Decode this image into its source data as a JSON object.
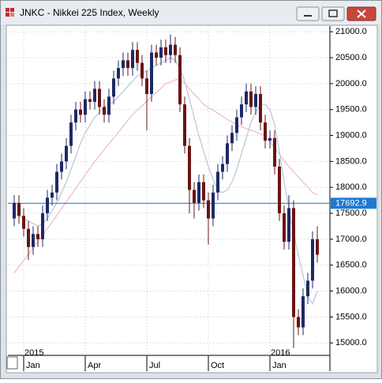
{
  "chart_data": {
    "type": "candlestick",
    "title": "JNKC - Nikkei 225 Index, Weekly",
    "categories": [
      null,
      null,
      "Jan",
      null,
      null,
      null,
      null,
      null,
      null,
      null,
      null,
      null,
      null,
      null,
      null,
      "Apr",
      null,
      null,
      null,
      null,
      null,
      null,
      null,
      null,
      null,
      null,
      null,
      null,
      "Jul",
      null,
      null,
      null,
      null,
      null,
      null,
      null,
      null,
      null,
      null,
      null,
      null,
      "Oct",
      null,
      null,
      null,
      null,
      null,
      null,
      null,
      null,
      null,
      null,
      null,
      null,
      "Jan",
      null,
      null,
      null,
      null,
      null,
      null,
      null,
      null,
      null,
      null
    ],
    "years": [
      "2015",
      "2016"
    ],
    "open": [
      17400,
      17700,
      17450,
      17200,
      16850,
      17100,
      17000,
      17500,
      17800,
      17900,
      18300,
      18500,
      18800,
      19250,
      19500,
      19400,
      19700,
      19650,
      19900,
      19550,
      19400,
      19750,
      20100,
      20300,
      20450,
      20300,
      20650,
      20400,
      20100,
      19800,
      20600,
      20500,
      20700,
      20550,
      20750,
      20550,
      19600,
      18800,
      17950,
      17700,
      18100,
      17750,
      17400,
      17900,
      18300,
      18450,
      18850,
      19050,
      19350,
      19600,
      19850,
      19550,
      19800,
      19250,
      18900,
      18950,
      18400,
      17500,
      16950,
      17600,
      15500,
      15300,
      15900,
      16200,
      17000
    ],
    "high": [
      17850,
      17850,
      17600,
      17350,
      17250,
      17250,
      17650,
      17950,
      18050,
      18450,
      18650,
      18950,
      19400,
      19650,
      19650,
      19850,
      19850,
      20050,
      20050,
      19700,
      19900,
      20250,
      20450,
      20600,
      20600,
      20800,
      20800,
      20550,
      20250,
      20750,
      20750,
      20850,
      20850,
      20950,
      20900,
      20700,
      19750,
      18950,
      18100,
      18250,
      18250,
      17900,
      18050,
      18450,
      18600,
      19000,
      19200,
      19500,
      19750,
      20000,
      20000,
      19950,
      19950,
      19400,
      19100,
      19100,
      18550,
      17650,
      17850,
      17750,
      15650,
      16050,
      16350,
      17150,
      17250
    ],
    "low": [
      17250,
      17300,
      17050,
      16600,
      16700,
      16850,
      16850,
      17350,
      17650,
      17750,
      18150,
      18350,
      18650,
      19100,
      19250,
      19250,
      19500,
      19500,
      19400,
      19250,
      19250,
      19600,
      19950,
      20150,
      20150,
      20150,
      20250,
      19950,
      19100,
      19650,
      20350,
      20350,
      20400,
      20400,
      20400,
      19450,
      18650,
      17500,
      17400,
      17550,
      17600,
      16900,
      17250,
      17750,
      18150,
      18300,
      18700,
      18900,
      19200,
      19450,
      19400,
      19400,
      19100,
      18750,
      18750,
      18250,
      17350,
      16800,
      16800,
      14900,
      15150,
      15150,
      15750,
      16050,
      16550
    ],
    "close": [
      17700,
      17450,
      17200,
      16850,
      17100,
      17000,
      17500,
      17800,
      17900,
      18300,
      18500,
      18800,
      19250,
      19500,
      19400,
      19700,
      19650,
      19900,
      19550,
      19400,
      19750,
      20100,
      20300,
      20450,
      20300,
      20650,
      20400,
      20100,
      19800,
      20600,
      20500,
      20700,
      20550,
      20750,
      20550,
      19600,
      18800,
      17950,
      17700,
      18100,
      17750,
      17400,
      17900,
      18300,
      18450,
      18850,
      19050,
      19350,
      19600,
      19850,
      19550,
      19800,
      19250,
      18900,
      18950,
      18400,
      17500,
      16950,
      17600,
      15500,
      15300,
      15900,
      16200,
      17000,
      16700
    ],
    "up_color": "#1c2a66",
    "down_color": "#6b1414",
    "overlays": [
      {
        "color": "#b8c6d8",
        "values": [
          17500,
          17450,
          17400,
          17350,
          17300,
          17250,
          17300,
          17400,
          17550,
          17700,
          17900,
          18100,
          18350,
          18600,
          18850,
          19050,
          19200,
          19350,
          19450,
          19550,
          19600,
          19650,
          19750,
          19850,
          19950,
          20050,
          20150,
          20200,
          20250,
          20300,
          20350,
          20400,
          20450,
          20500,
          20450,
          20300,
          20050,
          19700,
          19350,
          19000,
          18700,
          18400,
          18150,
          17950,
          17900,
          17950,
          18100,
          18350,
          18650,
          18950,
          19250,
          19450,
          19600,
          19600,
          19500,
          19200,
          18700,
          18100,
          17600,
          17100,
          16700,
          16300,
          15900,
          15750,
          16000
        ]
      },
      {
        "color": "#f0b8c8",
        "values": [
          16350,
          16470,
          16590,
          16710,
          16830,
          16950,
          17080,
          17200,
          17330,
          17460,
          17590,
          17720,
          17850,
          17980,
          18110,
          18240,
          18370,
          18500,
          18610,
          18730,
          18840,
          18950,
          19060,
          19180,
          19290,
          19400,
          19490,
          19570,
          19660,
          19740,
          19830,
          19910,
          20000,
          20030,
          20070,
          20100,
          20000,
          19900,
          19800,
          19700,
          19600,
          19540,
          19490,
          19430,
          19370,
          19310,
          19260,
          19200,
          19170,
          19130,
          19100,
          19070,
          19030,
          19000,
          18880,
          18760,
          18640,
          18520,
          18400,
          18300,
          18200,
          18100,
          18000,
          17900,
          17850
        ]
      }
    ],
    "price_line": 17692.9,
    "price_line_color": "#1e78d2",
    "ylim": [
      14760,
      21110
    ],
    "yticks": [
      {
        "value": 15000,
        "label": "15000.0"
      },
      {
        "value": 15500,
        "label": "15500.0"
      },
      {
        "value": 16000,
        "label": "16000.0"
      },
      {
        "value": 16500,
        "label": "16500.0"
      },
      {
        "value": 17000,
        "label": "17000.0"
      },
      {
        "value": 17500,
        "label": "17500.0"
      },
      {
        "value": 18000,
        "label": "18000.0"
      },
      {
        "value": 18500,
        "label": "18500.0"
      },
      {
        "value": 19000,
        "label": "19000.0"
      },
      {
        "value": 19500,
        "label": "19500.0"
      },
      {
        "value": 20000,
        "label": "20000.0"
      },
      {
        "value": 20500,
        "label": "20500.0"
      },
      {
        "value": 21000,
        "label": "21000.0"
      }
    ],
    "grid": true
  }
}
